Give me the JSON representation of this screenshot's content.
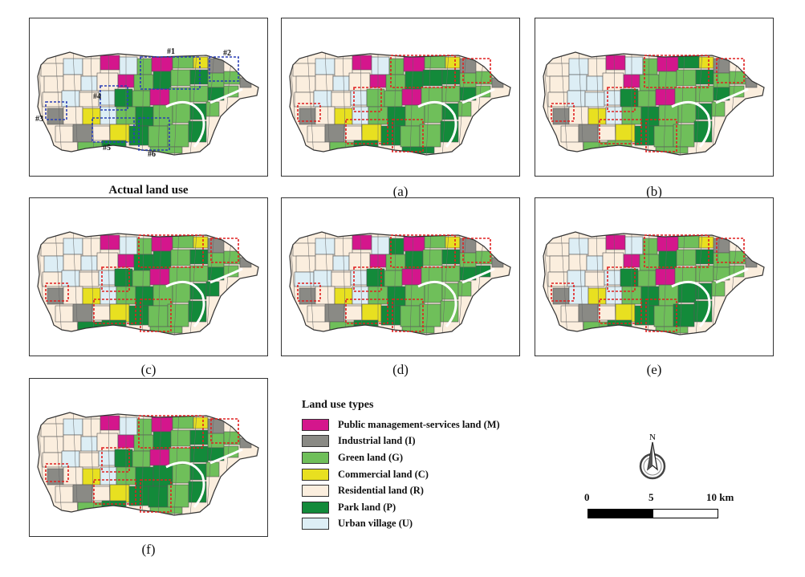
{
  "panels": [
    {
      "id": "actual",
      "caption": "Actual land use",
      "bold": true,
      "box_color": "#2a3fb5",
      "labels": [
        "#1",
        "#2",
        "#3",
        "#4",
        "#5",
        "#6"
      ]
    },
    {
      "id": "a",
      "caption": "(a)",
      "bold": false,
      "box_color": "#e02020",
      "labels": []
    },
    {
      "id": "b",
      "caption": "(b)",
      "bold": false,
      "box_color": "#e02020",
      "labels": []
    },
    {
      "id": "c",
      "caption": "(c)",
      "bold": false,
      "box_color": "#e02020",
      "labels": []
    },
    {
      "id": "d",
      "caption": "(d)",
      "bold": false,
      "box_color": "#e02020",
      "labels": []
    },
    {
      "id": "e",
      "caption": "(e)",
      "bold": false,
      "box_color": "#e02020",
      "labels": []
    },
    {
      "id": "f",
      "caption": "(f)",
      "bold": false,
      "box_color": "#e02020",
      "labels": []
    }
  ],
  "legend": {
    "title": "Land use types",
    "items": [
      {
        "label": "Public management-services land (M)",
        "color": "#d4168c"
      },
      {
        "label": "Industrial land (I)",
        "color": "#8a8a85"
      },
      {
        "label": "Green land (G)",
        "color": "#6fbf5a"
      },
      {
        "label": "Commercial land (C)",
        "color": "#e8e020"
      },
      {
        "label": "Residential land (R)",
        "color": "#fbeede"
      },
      {
        "label": "Park land (P)",
        "color": "#138a3a"
      },
      {
        "label": "Urban village (U)",
        "color": "#ddeef5"
      }
    ]
  },
  "north_label": "N",
  "scale": {
    "labels": [
      "0",
      "5",
      "10 km"
    ]
  }
}
